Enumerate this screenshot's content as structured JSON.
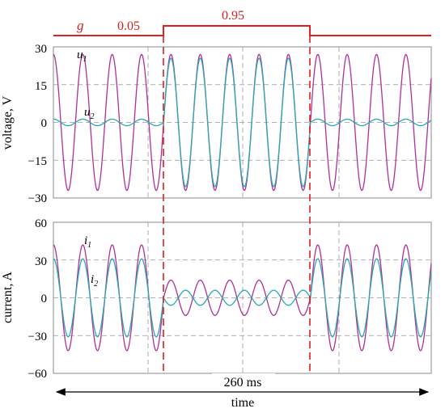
{
  "colors": {
    "u1": "#b0309a",
    "u2": "#28aab0",
    "i1": "#b0309a",
    "i2": "#28aab0",
    "gate": "#e02020",
    "grid": "#999999"
  },
  "gate_signal": {
    "label": "g",
    "low_label": "0.05",
    "high_label": "0.95"
  },
  "annotation": {
    "duration": "260 ms",
    "xlabel": "time"
  },
  "chart_data": [
    {
      "type": "line",
      "ylabel": "voltage, V",
      "ylim": [
        -30,
        30
      ],
      "yticks": [
        "30",
        "15",
        "0",
        "−15",
        "−30"
      ],
      "grid": true,
      "series": [
        {
          "name": "u1",
          "name_main": "u",
          "name_sub": "1",
          "amplitude": [
            27,
            27,
            27
          ],
          "phase_shift_deg": [
            0,
            0,
            0
          ]
        },
        {
          "name": "u2",
          "name_main": "u",
          "name_sub": "2",
          "amplitude": [
            1.3,
            25.5,
            1.3
          ],
          "phase_shift_deg": [
            0,
            0,
            0
          ]
        }
      ]
    },
    {
      "type": "line",
      "ylabel": "current, A",
      "ylim": [
        -60,
        60
      ],
      "yticks": [
        "60",
        "30",
        "0",
        "−30",
        "−60"
      ],
      "grid": true,
      "series": [
        {
          "name": "i1",
          "name_main": "i",
          "name_sub": "1",
          "amplitude": [
            42,
            14,
            42
          ],
          "phase_shift_deg": [
            0,
            0,
            0
          ]
        },
        {
          "name": "i2",
          "name_main": "i",
          "name_sub": "2",
          "amplitude": [
            31,
            6,
            31
          ],
          "phase_shift_deg": [
            0,
            180,
            0
          ]
        }
      ]
    }
  ]
}
